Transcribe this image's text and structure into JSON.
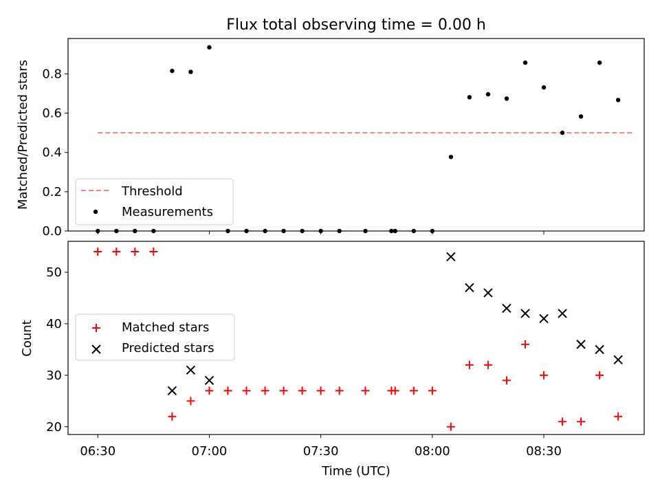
{
  "figure": {
    "title": "Flux total observing time = 0.00 h",
    "xlabel": "Time (UTC)"
  },
  "colors": {
    "threshold": "#ff7f7f",
    "measurement": "#000000",
    "matched": "#ff0000",
    "predicted": "#000000"
  },
  "chart_data": [
    {
      "type": "scatter",
      "panel": "top",
      "ylabel": "Matched/Predicted stars",
      "xlim": [
        "06:22",
        "08:57"
      ],
      "ylim": [
        0,
        0.98
      ],
      "xticks": [
        "06:30",
        "07:00",
        "07:30",
        "08:00",
        "08:30"
      ],
      "yticks": [
        0.0,
        0.2,
        0.4,
        0.6,
        0.8
      ],
      "ytick_labels": [
        "0.0",
        "0.2",
        "0.4",
        "0.6",
        "0.8"
      ],
      "legend_position": "lower-left",
      "threshold": {
        "name": "Threshold",
        "y": 0.5,
        "x": [
          "06:30",
          "08:54"
        ]
      },
      "series": [
        {
          "name": "Measurements",
          "x": [
            "06:30",
            "06:35",
            "06:40",
            "06:45",
            "06:50",
            "06:55",
            "07:00",
            "07:05",
            "07:10",
            "07:15",
            "07:20",
            "07:25",
            "07:30",
            "07:35",
            "07:42",
            "07:49",
            "07:50",
            "07:55",
            "08:00",
            "08:05",
            "08:10",
            "08:15",
            "08:20",
            "08:25",
            "08:30",
            "08:35",
            "08:40",
            "08:45",
            "08:50"
          ],
          "y": [
            0,
            0,
            0,
            0,
            0.815,
            0.81,
            0.935,
            0,
            0,
            0,
            0,
            0,
            0,
            0,
            0,
            0,
            0,
            0,
            0,
            0.377,
            0.681,
            0.696,
            0.674,
            0.857,
            0.731,
            0.5,
            0.583,
            0.857,
            0.667
          ]
        }
      ]
    },
    {
      "type": "scatter",
      "panel": "bottom",
      "ylabel": "Count",
      "xlim": [
        "06:22",
        "08:57"
      ],
      "ylim": [
        18.5,
        56
      ],
      "xticks": [
        "06:30",
        "07:00",
        "07:30",
        "08:00",
        "08:30"
      ],
      "yticks": [
        20,
        30,
        40,
        50
      ],
      "ytick_labels": [
        "20",
        "30",
        "40",
        "50"
      ],
      "legend_position": "center-left",
      "series": [
        {
          "name": "Matched stars",
          "marker": "+",
          "x": [
            "06:30",
            "06:35",
            "06:40",
            "06:45",
            "06:50",
            "06:55",
            "07:00",
            "07:05",
            "07:10",
            "07:15",
            "07:20",
            "07:25",
            "07:30",
            "07:35",
            "07:42",
            "07:49",
            "07:50",
            "07:55",
            "08:00",
            "08:05",
            "08:10",
            "08:15",
            "08:20",
            "08:25",
            "08:30",
            "08:35",
            "08:40",
            "08:45",
            "08:50"
          ],
          "y": [
            54,
            54,
            54,
            54,
            22,
            25,
            27,
            27,
            27,
            27,
            27,
            27,
            27,
            27,
            27,
            27,
            27,
            27,
            27,
            20,
            32,
            32,
            29,
            36,
            30,
            21,
            21,
            30,
            22
          ]
        },
        {
          "name": "Predicted stars",
          "marker": "x",
          "x": [
            "06:50",
            "06:55",
            "07:00",
            "08:05",
            "08:10",
            "08:15",
            "08:20",
            "08:25",
            "08:30",
            "08:35",
            "08:40",
            "08:45",
            "08:50"
          ],
          "y": [
            27,
            31,
            29,
            53,
            47,
            46,
            43,
            42,
            41,
            42,
            36,
            35,
            33
          ]
        }
      ]
    }
  ]
}
